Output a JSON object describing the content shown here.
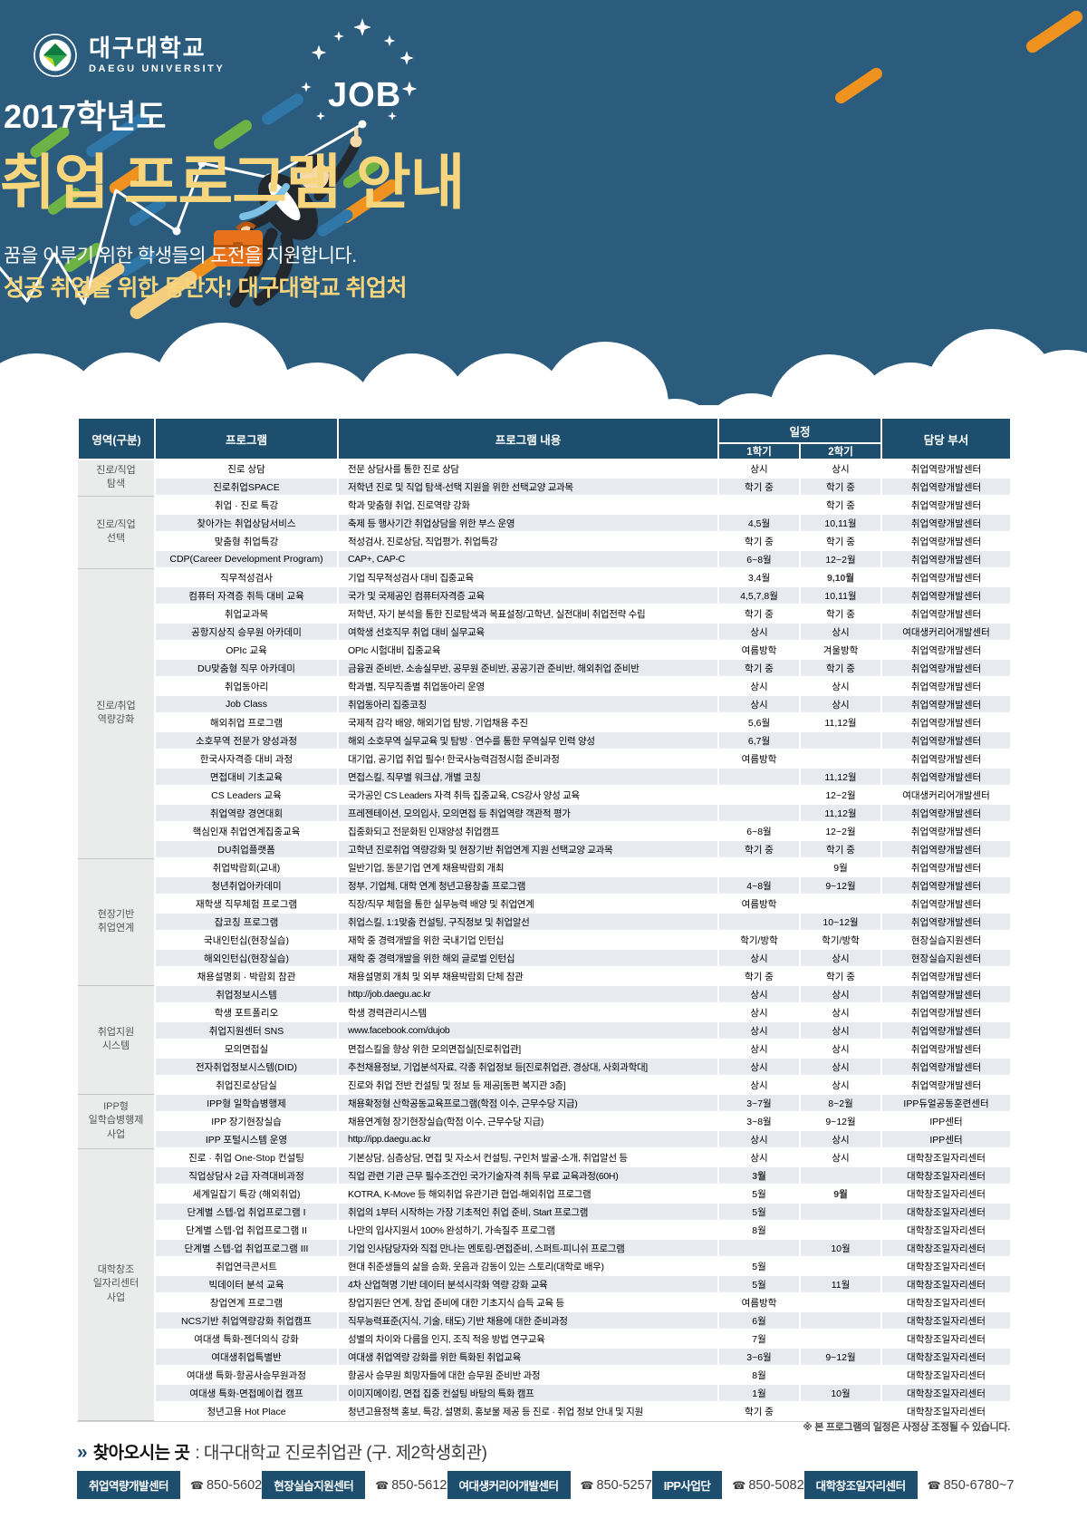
{
  "colors": {
    "hero_bg": "#2b5c7d",
    "navy": "#1d4e6e",
    "title_yellow": "#f6d57d",
    "row_alt": "#e7ebef",
    "group_bg": "#eaeceb",
    "dash_green": "#6db244",
    "dash_blue": "#3077a9",
    "dash_orange": "#f0921f",
    "dash_yellow": "#f4cd7e",
    "briefcase_orange": "#e8711c",
    "briefcase_dark": "#b5560f",
    "tie_blue": "#7cc0e4",
    "skin": "#f7d9a8",
    "suit_dark": "#23282e"
  },
  "hero": {
    "logo": {
      "kr": "대구대학교",
      "en": "DAEGU UNIVERSITY"
    },
    "job_label": "JOB",
    "year": "2017학년도",
    "title": "취업 프로그램 안내",
    "subtitle1": "꿈을 이루기 위한 학생들의 도전을 지원합니다.",
    "subtitle2": "성공 취업을 위한 동반자! 대구대학교 취업처"
  },
  "table": {
    "headers": {
      "area": "영역(구분)",
      "program": "프로그램",
      "content": "프로그램 내용",
      "schedule": "일정",
      "sem1": "1학기",
      "sem2": "2학기",
      "dept": "담당 부서"
    },
    "groups": [
      {
        "area": [
          "진로/직업",
          "탐색"
        ],
        "rows": [
          {
            "program": "진로 상담",
            "content": "전문 상담사를 통한 진로 상담",
            "sem1": "상시",
            "sem2": "상시",
            "dept": "취업역량개발센터"
          },
          {
            "program": "진로취업SPACE",
            "content": "저학년 진로 및 직업 탐색-선택 지원을 위한 선택교양 교과목",
            "sem1": "학기 중",
            "sem2": "학기 중",
            "dept": "취업역량개발센터"
          }
        ]
      },
      {
        "area": [
          "진로/직업",
          "선택"
        ],
        "rows": [
          {
            "program": "취업 · 진로 특강",
            "content": "학과 맞춤형 취업, 진로역량 강화",
            "sem1": "",
            "sem2": "학기 중",
            "dept": "취업역량개발센터"
          },
          {
            "program": "찾아가는 취업상담서비스",
            "content": "축제 등 행사기간 취업상담을 위한 부스 운영",
            "sem1": "4,5월",
            "sem2": "10,11월",
            "dept": "취업역량개발센터"
          },
          {
            "program": "맞춤형 취업특강",
            "content": "적성검사, 진로상담, 직업평가, 취업특강",
            "sem1": "학기 중",
            "sem2": "학기 중",
            "dept": "취업역량개발센터"
          },
          {
            "program": "CDP(Career Development Program)",
            "content": "CAP+, CAP-C",
            "sem1": "6~8월",
            "sem2": "12~2월",
            "dept": "취업역량개발센터"
          }
        ]
      },
      {
        "area": [
          "진로/취업",
          "역량강화"
        ],
        "rows": [
          {
            "program": "직무적성검사",
            "content": "기업 직무적성검사 대비 집중교육",
            "sem1": "3,4월",
            "sem2": "9,10월",
            "sem2_bold": true,
            "dept": "취업역량개발센터"
          },
          {
            "program": "컴퓨터 자격증 취득 대비 교육",
            "content": "국가 및 국제공인 컴퓨터자격증 교육",
            "sem1": "4,5,7,8월",
            "sem2": "10,11월",
            "dept": "취업역량개발센터"
          },
          {
            "program": "취업교과목",
            "content": "저학년, 자기 분석을 통한 진로탐색과 목표설정/고학년, 실전대비 취업전략 수립",
            "sem1": "학기 중",
            "sem2": "학기 중",
            "dept": "취업역량개발센터"
          },
          {
            "program": "공항지상직 승무원 아카데미",
            "content": "여학생 선호직무 취업 대비 실무교육",
            "sem1": "상시",
            "sem2": "상시",
            "dept": "여대생커리어개발센터"
          },
          {
            "program": "OPIc 교육",
            "content": "OPIc 시험대비 집중교육",
            "sem1": "여름방학",
            "sem2": "겨울방학",
            "dept": "취업역량개발센터"
          },
          {
            "program": "DU맞춤형 직무 아카데미",
            "content": "금융권 준비반, 소송실무반, 공무원 준비반, 공공기관 준비반, 해외취업 준비반",
            "sem1": "학기 중",
            "sem2": "학기 중",
            "dept": "취업역량개발센터"
          },
          {
            "program": "취업동아리",
            "content": "학과별, 직무직종별 취업동아리 운영",
            "sem1": "상시",
            "sem2": "상시",
            "dept": "취업역량개발센터"
          },
          {
            "program": "Job Class",
            "content": "취업동아리 집중코칭",
            "sem1": "상시",
            "sem2": "상시",
            "dept": "취업역량개발센터"
          },
          {
            "program": "해외취업 프로그램",
            "content": "국제적 감각 배양, 해외기업 탐방, 기업채용 추진",
            "sem1": "5,6월",
            "sem2": "11,12월",
            "dept": "취업역량개발센터"
          },
          {
            "program": "소호무역 전문가 양성과정",
            "content": "해외 소호무역 실무교육 및 탐방 · 연수를 통한 무역실무 인력 양성",
            "sem1": "6,7월",
            "sem2": "",
            "dept": "취업역량개발센터"
          },
          {
            "program": "한국사자격증 대비 과정",
            "content": "대기업, 공기업 취업 필수! 한국사능력검정시험 준비과정",
            "sem1": "여름방학",
            "sem2": "",
            "dept": "취업역량개발센터"
          },
          {
            "program": "면접대비 기초교육",
            "content": "면접스킬, 직무별 워크샵, 개별 코칭",
            "sem1": "",
            "sem2": "11,12월",
            "dept": "취업역량개발센터"
          },
          {
            "program": "CS Leaders 교육",
            "content": "국가공인 CS Leaders 자격 취득 집중교육, CS강사 양성 교육",
            "sem1": "",
            "sem2": "12~2월",
            "dept": "여대생커리어개발센터"
          },
          {
            "program": "취업역량 경연대회",
            "content": "프레젠테이션, 모의입사, 모의면접 등 취업역량 객관적 평가",
            "sem1": "",
            "sem2": "11,12월",
            "dept": "취업역량개발센터"
          },
          {
            "program": "핵심인재 취업연계집중교육",
            "content": "집중화되고 전문화된 인재양성 취업캠프",
            "sem1": "6~8월",
            "sem2": "12~2월",
            "dept": "취업역량개발센터"
          },
          {
            "program": "DU취업플랫폼",
            "content": "고학년 진로취업 역량강화 및 현장기반 취업연계 지원 선택교양 교과목",
            "sem1": "학기 중",
            "sem2": "학기 중",
            "dept": "취업역량개발센터"
          }
        ]
      },
      {
        "area": [
          "현장기반",
          "취업연계"
        ],
        "rows": [
          {
            "program": "취업박람회(교내)",
            "content": "일반기업, 동문기업 연계 채용박람회 개최",
            "sem1": "",
            "sem2": "9월",
            "dept": "취업역량개발센터"
          },
          {
            "program": "청년취업아카데미",
            "content": "정부, 기업체, 대학 연계 청년고용창출 프로그램",
            "sem1": "4~8월",
            "sem2": "9~12월",
            "dept": "취업역량개발센터"
          },
          {
            "program": "재학생 직무체험 프로그램",
            "content": "직장/직무 체험을 통한 실무능력 배양 및 취업연계",
            "sem1": "여름방학",
            "sem2": "",
            "dept": "취업역량개발센터"
          },
          {
            "program": "잡코칭 프로그램",
            "content": "취업스킬, 1:1맞춤 컨설팅, 구직정보 및 취업알선",
            "sem1": "",
            "sem2": "10~12월",
            "dept": "취업역량개발센터"
          },
          {
            "program": "국내인턴십(현장실습)",
            "content": "재학 중 경력개발을 위한 국내기업 인턴십",
            "sem1": "학기/방학",
            "sem2": "학기/방학",
            "dept": "현장실습지원센터"
          },
          {
            "program": "해외인턴십(현장실습)",
            "content": "재학 중 경력개발을 위한 해외 글로벌 인턴십",
            "sem1": "상시",
            "sem2": "상시",
            "dept": "현장실습지원센터"
          },
          {
            "program": "채용설명회 · 박람회 참관",
            "content": "채용설명회 개최 및 외부 채용박람회 단체 참관",
            "sem1": "학기 중",
            "sem2": "학기 중",
            "dept": "취업역량개발센터"
          }
        ]
      },
      {
        "area": [
          "취업지원",
          "시스템"
        ],
        "rows": [
          {
            "program": "취업정보시스템",
            "content": "http://job.daegu.ac.kr",
            "sem1": "상시",
            "sem2": "상시",
            "dept": "취업역량개발센터"
          },
          {
            "program": "학생 포트폴리오",
            "content": "학생 경력관리시스템",
            "sem1": "상시",
            "sem2": "상시",
            "dept": "취업역량개발센터"
          },
          {
            "program": "취업지원센터 SNS",
            "content": "www.facebook.com/dujob",
            "sem1": "상시",
            "sem2": "상시",
            "dept": "취업역량개발센터"
          },
          {
            "program": "모의면접실",
            "content": "면접스킬을 향상 위한 모의면접실[진로취업관]",
            "sem1": "상시",
            "sem2": "상시",
            "dept": "취업역량개발센터"
          },
          {
            "program": "전자취업정보시스템(DID)",
            "content": "추천채용정보, 기업분석자료, 각종 취업정보 등[진로취업관, 경상대, 사회과학대]",
            "sem1": "상시",
            "sem2": "상시",
            "dept": "취업역량개발센터"
          },
          {
            "program": "취업진로상담실",
            "content": "진로와 취업 전반 컨설팅 및 정보 등 제공[동편 복지관 3층]",
            "sem1": "상시",
            "sem2": "상시",
            "dept": "취업역량개발센터"
          }
        ]
      },
      {
        "area": [
          "IPP형",
          "일학습병행제",
          "사업"
        ],
        "rows": [
          {
            "program": "IPP형 일학습병행제",
            "content": "채용확정형 산학공동교육프로그램(학점 이수, 근무수당 지급)",
            "sem1": "3~7월",
            "sem2": "8~2월",
            "dept": "IPP듀얼공동훈련센터"
          },
          {
            "program": "IPP 장기현장실습",
            "content": "채용연계형 장기현장실습(학점 이수, 근무수당 지급)",
            "sem1": "3~8월",
            "sem2": "9~12월",
            "dept": "IPP센터"
          },
          {
            "program": "IPP 포털시스템 운영",
            "content": "http://ipp.daegu.ac.kr",
            "sem1": "상시",
            "sem2": "상시",
            "dept": "IPP센터"
          }
        ]
      },
      {
        "area": [
          "대학창조",
          "일자리센터",
          "사업"
        ],
        "rows": [
          {
            "program": "진로 · 취업 One-Stop 컨설팅",
            "content": "기본상담, 심층상담, 면접 및 자소서 컨설팅, 구인처 발굴-소개, 취업알선 등",
            "sem1": "상시",
            "sem2": "상시",
            "dept": "대학창조일자리센터"
          },
          {
            "program": "직업상담사 2급 자격대비과정",
            "content": "직업 관련 기관 근무 필수조건인 국가기술자격 취득 무료 교육과정(60H)",
            "sem1": "3월",
            "sem1_bold": true,
            "sem2": "",
            "dept": "대학창조일자리센터"
          },
          {
            "program": "세계일잡기 특강 (해외취업)",
            "content": "KOTRA, K-Move 등 해외취업 유관기관 협업-해외취업 프로그램",
            "sem1": "5월",
            "sem2": "9월",
            "sem2_bold": true,
            "dept": "대학창조일자리센터"
          },
          {
            "program": "단계별 스텝-업 취업프로그램 I",
            "content": "취업의 1부터 시작하는 가장 기초적인 취업 준비, Start 프로그램",
            "sem1": "5월",
            "sem2": "",
            "dept": "대학창조일자리센터"
          },
          {
            "program": "단계별 스텝-업 취업프로그램 II",
            "content": "나만의 입사지원서 100% 완성하기, 가속질주 프로그램",
            "sem1": "8월",
            "sem2": "",
            "dept": "대학창조일자리센터"
          },
          {
            "program": "단계별 스텝-업 취업프로그램 III",
            "content": "기업 인사담당자와 직접 만나는 멘토링-면접준비, 스퍼트-피니쉬 프로그램",
            "sem1": "",
            "sem2": "10월",
            "dept": "대학창조일자리센터"
          },
          {
            "program": "취업연극콘서트",
            "content": "현대 취준생들의 삶을 승화, 웃음과 감동이 있는 스토리(대학로 배우)",
            "sem1": "5월",
            "sem2": "",
            "dept": "대학창조일자리센터"
          },
          {
            "program": "빅데이터 분석 교육",
            "content": "4차 산업혁명 기반 데이터 분석시각화 역량 강화 교육",
            "sem1": "5월",
            "sem2": "11월",
            "dept": "대학창조일자리센터"
          },
          {
            "program": "창업연계 프로그램",
            "content": "창업지원단 연계, 창업 준비에 대한 기초지식 습득 교육 등",
            "sem1": "여름방학",
            "sem2": "",
            "dept": "대학창조일자리센터"
          },
          {
            "program": "NCS기반 취업역량강화 취업캠프",
            "content": "직무능력표준(지식, 기술, 태도) 기반 채용에 대한 준비과정",
            "sem1": "6월",
            "sem2": "",
            "dept": "대학창조일자리센터"
          },
          {
            "program": "여대생 특화-젠더의식 강화",
            "content": "성별의 차이와 다름을 인지, 조직 적응 방법 연구교육",
            "sem1": "7월",
            "sem2": "",
            "dept": "대학창조일자리센터"
          },
          {
            "program": "여대생취업특별반",
            "content": "여대생 취업역량 강화를 위한 특화된 취업교육",
            "sem1": "3~6월",
            "sem2": "9~12월",
            "dept": "대학창조일자리센터"
          },
          {
            "program": "여대생 특화-항공사승무원과정",
            "content": "항공사 승무원 희망자들에 대한 승무원 준비반 과정",
            "sem1": "8월",
            "sem2": "",
            "dept": "대학창조일자리센터"
          },
          {
            "program": "여대생 특화-면접메이컵 캠프",
            "content": "이미지메이킹, 면접 집중 컨설팅 바탕의 특화 캠프",
            "sem1": "1월",
            "sem2": "10월",
            "dept": "대학창조일자리센터"
          },
          {
            "program": "청년고용 Hot Place",
            "content": "청년고용정책 홍보, 특강, 설명회, 홍보물 제공 등 진로 · 취업 정보 안내 및 지원",
            "sem1": "학기 중",
            "sem2": "",
            "dept": "대학창조일자리센터"
          }
        ]
      }
    ]
  },
  "footnote": "※ 본 프로그램의 일정은 사정상 조정될 수 있습니다.",
  "footer": {
    "visit_icon": "»",
    "visit_label": "찾아오시는 곳",
    "visit_value": ": 대구대학교 진로취업관 (구. 제2학생회관)",
    "phone_icon": "☎",
    "contacts": [
      {
        "name": "취업역량개발센터",
        "phone": "850-5602"
      },
      {
        "name": "현장실습지원센터",
        "phone": "850-5612"
      },
      {
        "name": "여대생커리어개발센터",
        "phone": "850-5257"
      },
      {
        "name": "IPP사업단",
        "phone": "850-5082"
      },
      {
        "name": "대학창조일자리센터",
        "phone": "850-6780~7"
      }
    ]
  }
}
